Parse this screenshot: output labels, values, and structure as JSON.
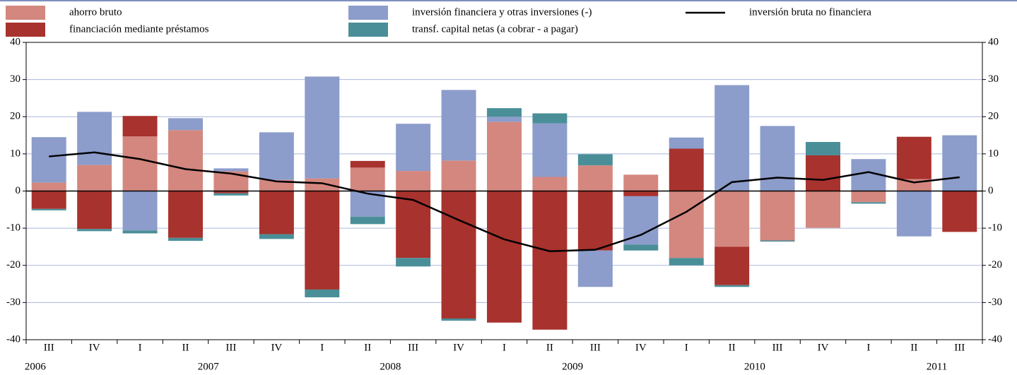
{
  "chart_data": {
    "type": "bar",
    "categories": [
      "III",
      "IV",
      "I",
      "II",
      "III",
      "IV",
      "I",
      "II",
      "III",
      "IV",
      "I",
      "II",
      "III",
      "IV",
      "I",
      "II",
      "III",
      "IV",
      "I",
      "II",
      "III"
    ],
    "years": [
      "2006",
      "2007",
      "2008",
      "2009",
      "2010",
      "2011"
    ],
    "series": [
      {
        "name": "ahorro bruto",
        "color": "#d4877f",
        "values": [
          2.3,
          7.0,
          14.7,
          16.4,
          5.3,
          3.0,
          3.4,
          6.3,
          5.4,
          8.2,
          18.6,
          3.8,
          6.9,
          4.4,
          -18.0,
          -15.0,
          -13.3,
          -9.9,
          -3.0,
          3.2,
          0
        ]
      },
      {
        "name": "financiación mediante préstamos",
        "color": "#a8322d",
        "values": [
          -4.8,
          -10.2,
          5.5,
          -12.6,
          -0.6,
          -11.6,
          -26.5,
          1.8,
          -18.0,
          -34.3,
          -35.4,
          -37.3,
          -16.0,
          -1.4,
          11.4,
          -10.3,
          0,
          9.6,
          0,
          11.4,
          -11.0
        ]
      },
      {
        "name": "inversión financiera y otras inversiones (-)",
        "color": "#8c9ccb",
        "values": [
          12.2,
          14.3,
          -10.6,
          3.2,
          0.8,
          12.8,
          27.4,
          -6.9,
          12.7,
          19.0,
          1.4,
          14.4,
          -9.8,
          -13.0,
          3.0,
          28.5,
          17.5,
          0,
          8.6,
          -12.2,
          15.0
        ]
      },
      {
        "name": "transf. capital netas (a cobrar - a pagar)",
        "color": "#4a8f98",
        "values": [
          -0.4,
          -0.6,
          -0.8,
          -0.8,
          -0.6,
          -1.3,
          -2.1,
          -2.0,
          -2.3,
          -0.6,
          2.3,
          2.7,
          3.0,
          -1.6,
          -2.0,
          -0.5,
          -0.3,
          3.6,
          -0.4,
          0,
          0
        ]
      },
      {
        "name": "inversión bruta no financiera",
        "color": "#000000",
        "type": "line",
        "values": [
          9.3,
          10.4,
          8.6,
          5.9,
          4.7,
          2.6,
          2.1,
          -0.7,
          -2.4,
          -7.8,
          -13.0,
          -16.2,
          -15.8,
          -11.8,
          -5.6,
          2.4,
          3.6,
          3.0,
          5.1,
          2.3,
          3.7
        ]
      }
    ],
    "ylim": [
      -40,
      40
    ],
    "yticks": [
      -40,
      -30,
      -20,
      -10,
      0,
      10,
      20,
      30,
      40
    ],
    "grid": true
  }
}
